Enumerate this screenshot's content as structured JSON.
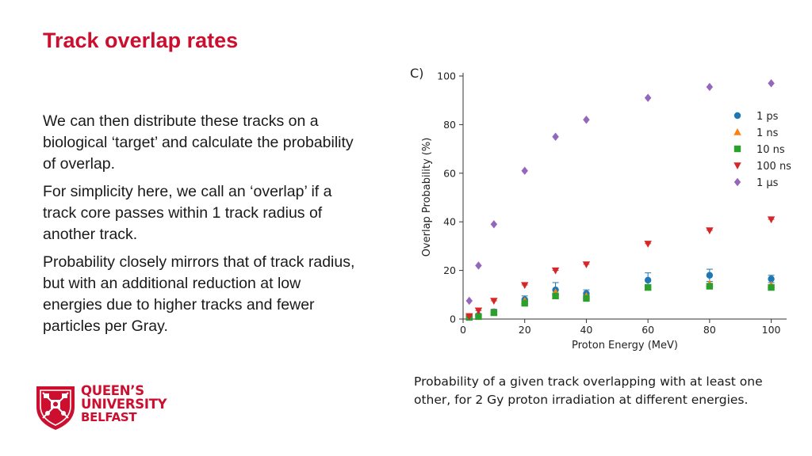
{
  "title": "Track overlap rates",
  "paragraphs": [
    "We can then distribute these tracks on a biological ‘target’ and calculate the probability of overlap.",
    "For simplicity here, we call an ‘overlap’ if a track core passes within 1 track radius of another track.",
    "Probability closely mirrors that of track radius, but with an additional reduction at low energies due to higher tracks and fewer particles per Gray."
  ],
  "caption": "Probability of a given track overlapping with at least one other, for 2 Gy proton irradiation at different energies.",
  "logo": {
    "line1": "QUEEN’S",
    "line2": "UNIVERSITY",
    "line3": "BELFAST"
  },
  "chart_data": {
    "type": "scatter",
    "panel_label": "C)",
    "xlabel": "Proton Energy (MeV)",
    "ylabel": "Overlap Probability (%)",
    "xlim": [
      0,
      105
    ],
    "ylim": [
      0,
      100
    ],
    "xticks": [
      0,
      20,
      40,
      60,
      80,
      100
    ],
    "yticks": [
      0,
      20,
      40,
      60,
      80,
      100
    ],
    "grid": false,
    "legend_position": "top-right",
    "x": [
      2,
      5,
      10,
      20,
      30,
      40,
      60,
      80,
      100
    ],
    "series": [
      {
        "name": "1 ps",
        "color": "#1f77b4",
        "marker": "circle",
        "values": [
          1,
          1.5,
          3,
          8,
          12,
          10.5,
          16,
          18,
          16.5
        ]
      },
      {
        "name": "1 ns",
        "color": "#ff7f0e",
        "marker": "triangle-up",
        "values": [
          0.8,
          1.2,
          2.8,
          7.5,
          11,
          9.5,
          13,
          14.5,
          14
        ]
      },
      {
        "name": "10 ns",
        "color": "#2ca02c",
        "marker": "square",
        "values": [
          0.7,
          1,
          2.6,
          6.5,
          9.5,
          8.5,
          13,
          13.5,
          13
        ]
      },
      {
        "name": "100 ns",
        "color": "#d62728",
        "marker": "triangle-down",
        "values": [
          1.2,
          3.5,
          7.5,
          14,
          20,
          22.5,
          31,
          36.5,
          41
        ]
      },
      {
        "name": "1 μs",
        "color": "#9467bd",
        "marker": "diamond",
        "values": [
          7.5,
          22,
          39,
          61,
          75,
          82,
          91,
          95.5,
          97
        ]
      }
    ],
    "errors": {
      "1 ps": [
        0.5,
        0.5,
        1,
        1.5,
        3,
        1.5,
        3,
        2.5,
        1.5
      ]
    }
  }
}
